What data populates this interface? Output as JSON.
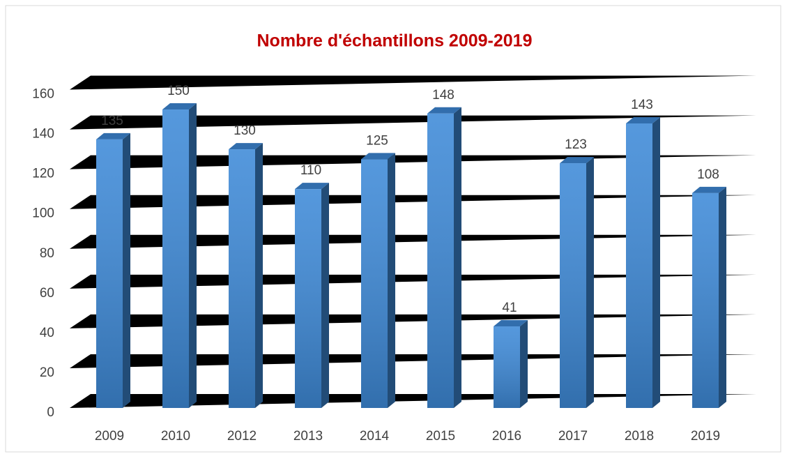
{
  "chart_data": {
    "type": "bar",
    "title": "Nombre d'échantillons 2009-2019",
    "categories": [
      "2009",
      "2010",
      "2012",
      "2013",
      "2014",
      "2015",
      "2016",
      "2017",
      "2018",
      "2019"
    ],
    "values": [
      135,
      150,
      130,
      110,
      125,
      148,
      41,
      123,
      143,
      108
    ],
    "color": "#3e8ad8",
    "ylim": [
      0,
      160
    ],
    "yticks": [
      0,
      20,
      40,
      60,
      80,
      100,
      120,
      140,
      160
    ],
    "grid": true
  }
}
